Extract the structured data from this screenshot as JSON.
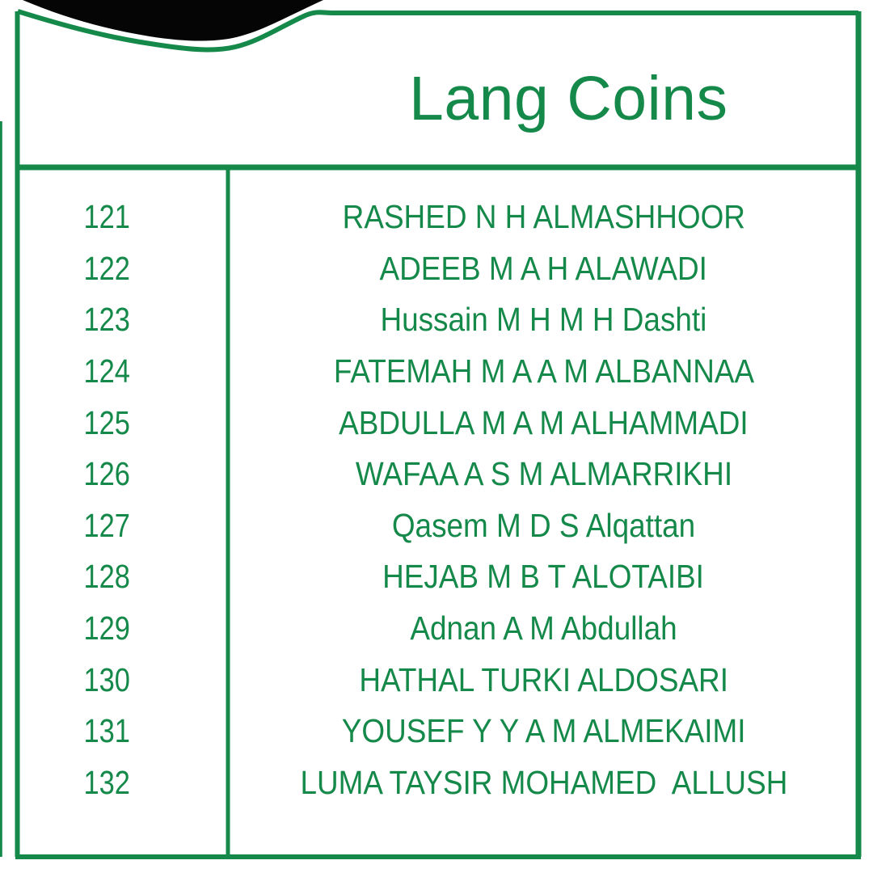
{
  "title": "Lang Coins",
  "colors": {
    "green": "#15894A",
    "collar_black": "#050505",
    "background": "#FFFFFF"
  },
  "table": {
    "columns": [
      "number",
      "name"
    ],
    "rows": [
      {
        "number": "121",
        "name": "RASHED N H ALMASHHOOR"
      },
      {
        "number": "122",
        "name": "ADEEB M A H ALAWADI"
      },
      {
        "number": "123",
        "name": "Hussain M H M H Dashti"
      },
      {
        "number": "124",
        "name": "FATEMAH M A A M ALBANNAA"
      },
      {
        "number": "125",
        "name": "ABDULLA M A M ALHAMMADI"
      },
      {
        "number": "126",
        "name": "WAFAA A S M ALMARRIKHI"
      },
      {
        "number": "127",
        "name": "Qasem M D S Alqattan"
      },
      {
        "number": "128",
        "name": "HEJAB M B T ALOTAIBI"
      },
      {
        "number": "129",
        "name": "Adnan A M Abdullah"
      },
      {
        "number": "130",
        "name": "HATHAL TURKI ALDOSARI"
      },
      {
        "number": "131",
        "name": "YOUSEF Y Y A M ALMEKAIMI"
      },
      {
        "number": "132",
        "name": "LUMA TAYSIR MOHAMED  ALLUSH"
      }
    ]
  }
}
